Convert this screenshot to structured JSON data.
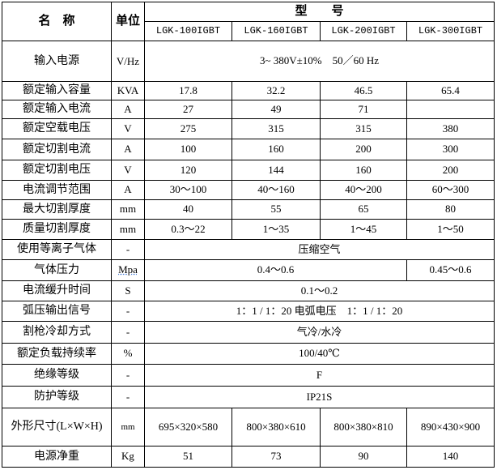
{
  "header": {
    "name_label": "名　称",
    "unit_label": "单位",
    "model_label": "型　　号",
    "models": [
      "LGK-100IGBT",
      "LGK-160IGBT",
      "LGK-200IGBT",
      "LGK-300IGBT"
    ]
  },
  "rows": [
    {
      "name": "输入电源",
      "unit": "V/Hz",
      "span": "3~ 380V±10%　50／60 Hz"
    },
    {
      "name": "额定输入容量",
      "unit": "KVA",
      "values": [
        "17.8",
        "32.2",
        "46.5",
        "65.4"
      ]
    },
    {
      "name": "额定输入电流",
      "unit": "A",
      "values": [
        "27",
        "49",
        "71",
        ""
      ]
    },
    {
      "name": "额定空载电压",
      "unit": "V",
      "values": [
        "275",
        "315",
        "315",
        "380"
      ]
    },
    {
      "name": "额定切割电流",
      "unit": "A",
      "values": [
        "100",
        "160",
        "200",
        "300"
      ]
    },
    {
      "name": "额定切割电压",
      "unit": "V",
      "values": [
        "120",
        "144",
        "160",
        "200"
      ]
    },
    {
      "name": "电流调节范围",
      "unit": "A",
      "values": [
        "30～100",
        "40～160",
        "40～200",
        "60～300"
      ]
    },
    {
      "name": "最大切割厚度",
      "unit": "mm",
      "values": [
        "40",
        "55",
        "65",
        "80"
      ]
    },
    {
      "name": "质量切割厚度",
      "unit": "mm",
      "values": [
        "0.3～22",
        "1～35",
        "1～45",
        "1～50"
      ]
    },
    {
      "name": "使用等离子气体",
      "unit": "-",
      "span": "压缩空气"
    },
    {
      "name": "气体压力",
      "unit": "Mpa",
      "span3": "0.4～0.6",
      "last": "0.45～0.6"
    },
    {
      "name": "电流缓升时间",
      "unit": "S",
      "span": "0.1～0.2"
    },
    {
      "name": "弧压输出信号",
      "unit": "-",
      "span": "1：1 / 1：20 电弧电压　1：1 / 1：20"
    },
    {
      "name": "割枪冷却方式",
      "unit": "-",
      "span": "气冷/水冷"
    },
    {
      "name": "额定负载持续率",
      "unit": "%",
      "span": "100/40℃"
    },
    {
      "name": "绝缘等级",
      "unit": "-",
      "span": "F"
    },
    {
      "name": "防护等级",
      "unit": "-",
      "span": "IP21S"
    },
    {
      "name": "外形尺寸(L×W×H)",
      "unit": "mm",
      "values": [
        "695×320×580",
        "800×380×610",
        "800×380×810",
        "890×430×900"
      ]
    },
    {
      "name": "电源净重",
      "unit": "Kg",
      "values": [
        "51",
        "73",
        "90",
        "140"
      ]
    }
  ]
}
